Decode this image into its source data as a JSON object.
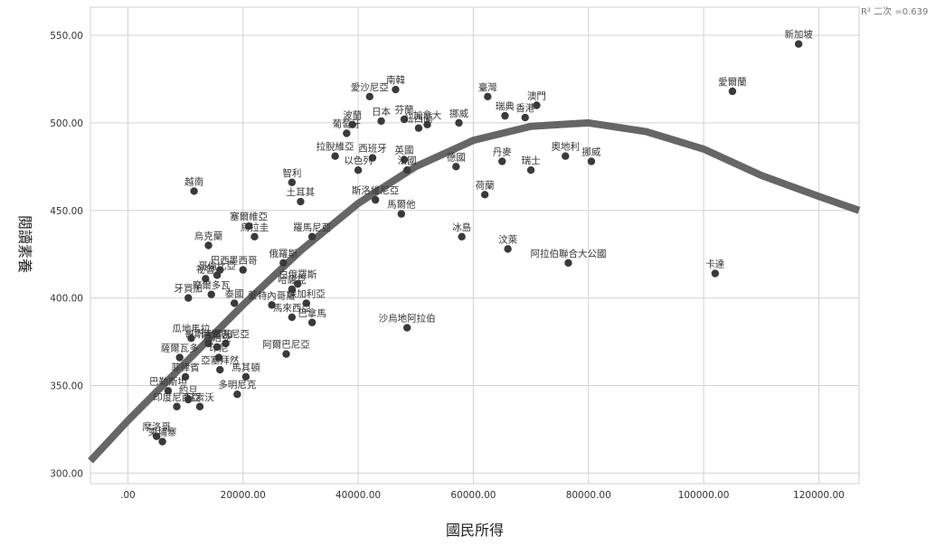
{
  "chart_data": {
    "type": "scatter",
    "xlabel": "國民所得",
    "ylabel": "閱讀素養",
    "xlim": [
      -6500,
      127000
    ],
    "ylim": [
      294,
      566
    ],
    "xticks": [
      0,
      20000,
      40000,
      60000,
      80000,
      100000,
      120000
    ],
    "xtick_labels": [
      ".00",
      "20000.00",
      "40000.00",
      "60000.00",
      "80000.00",
      "100000.00",
      "120000.00"
    ],
    "yticks": [
      300,
      350,
      400,
      450,
      500,
      550
    ],
    "ytick_labels": [
      "300.00",
      "350.00",
      "400.00",
      "450.00",
      "500.00",
      "550.00"
    ],
    "grid": true,
    "fit": {
      "type": "quadratic",
      "label": "R² 二次 =0.639",
      "color": "#666666",
      "curve": [
        [
          -6500,
          307
        ],
        [
          0,
          330
        ],
        [
          10000,
          363
        ],
        [
          20000,
          396
        ],
        [
          30000,
          427
        ],
        [
          40000,
          454
        ],
        [
          50000,
          475
        ],
        [
          60000,
          490
        ],
        [
          70000,
          498
        ],
        [
          80000,
          500
        ],
        [
          90000,
          495
        ],
        [
          100000,
          485
        ],
        [
          110000,
          470
        ],
        [
          120000,
          458
        ],
        [
          127000,
          450
        ]
      ]
    },
    "point_color": "#3a3a3a",
    "points": [
      {
        "label": "新加坡",
        "x": 116500,
        "y": 545
      },
      {
        "label": "愛爾蘭",
        "x": 105000,
        "y": 518
      },
      {
        "label": "卡達",
        "x": 102000,
        "y": 414
      },
      {
        "label": "南韓",
        "x": 46500,
        "y": 519
      },
      {
        "label": "愛沙尼亞",
        "x": 42000,
        "y": 515
      },
      {
        "label": "臺灣",
        "x": 62500,
        "y": 515
      },
      {
        "label": "澳門",
        "x": 71000,
        "y": 510
      },
      {
        "label": "香港",
        "x": 69000,
        "y": 503
      },
      {
        "label": "瑞典",
        "x": 65500,
        "y": 504
      },
      {
        "label": "挪威",
        "x": 57500,
        "y": 500
      },
      {
        "label": "加拿大",
        "x": 52000,
        "y": 499
      },
      {
        "label": "日本",
        "x": 44000,
        "y": 501
      },
      {
        "label": "波蘭",
        "x": 39000,
        "y": 499
      },
      {
        "label": "紐西蘭",
        "x": 50500,
        "y": 497
      },
      {
        "label": "芬蘭",
        "x": 48000,
        "y": 502
      },
      {
        "label": "葡萄牙",
        "x": 38000,
        "y": 494
      },
      {
        "label": "西班牙",
        "x": 42500,
        "y": 480
      },
      {
        "label": "拉脫維亞",
        "x": 36000,
        "y": 481
      },
      {
        "label": "英國",
        "x": 48000,
        "y": 479
      },
      {
        "label": "德國",
        "x": 57000,
        "y": 475
      },
      {
        "label": "丹麥",
        "x": 65000,
        "y": 478
      },
      {
        "label": "奧地利",
        "x": 76000,
        "y": 481
      },
      {
        "label": "挪威",
        "x": 80500,
        "y": 478
      },
      {
        "label": "瑞士",
        "x": 70000,
        "y": 473
      },
      {
        "label": "智利",
        "x": 28500,
        "y": 466
      },
      {
        "label": "以色列",
        "x": 40000,
        "y": 473
      },
      {
        "label": "法國",
        "x": 48500,
        "y": 473
      },
      {
        "label": "荷蘭",
        "x": 62000,
        "y": 459
      },
      {
        "label": "越南",
        "x": 11500,
        "y": 461
      },
      {
        "label": "土耳其",
        "x": 30000,
        "y": 455
      },
      {
        "label": "斯洛維尼亞",
        "x": 43000,
        "y": 456
      },
      {
        "label": "冰島",
        "x": 58000,
        "y": 435
      },
      {
        "label": "汶萊",
        "x": 66000,
        "y": 428
      },
      {
        "label": "阿拉伯聯合大公國",
        "x": 76500,
        "y": 420
      },
      {
        "label": "馬爾他",
        "x": 47500,
        "y": 448
      },
      {
        "label": "塞爾維亞",
        "x": 21000,
        "y": 441
      },
      {
        "label": "烏拉圭",
        "x": 22000,
        "y": 435
      },
      {
        "label": "羅馬尼亞",
        "x": 32000,
        "y": 435
      },
      {
        "label": "烏克蘭",
        "x": 14000,
        "y": 430
      },
      {
        "label": "哥倫比亞",
        "x": 15500,
        "y": 413
      },
      {
        "label": "巴西",
        "x": 16000,
        "y": 416
      },
      {
        "label": "墨西哥",
        "x": 20000,
        "y": 416
      },
      {
        "label": "俄羅斯",
        "x": 27000,
        "y": 420
      },
      {
        "label": "白俄羅斯",
        "x": 29500,
        "y": 408
      },
      {
        "label": "哈薩克",
        "x": 28500,
        "y": 405
      },
      {
        "label": "祕魯",
        "x": 13500,
        "y": 411
      },
      {
        "label": "牙買加",
        "x": 10500,
        "y": 400
      },
      {
        "label": "摩爾多瓦",
        "x": 14500,
        "y": 402
      },
      {
        "label": "泰國",
        "x": 18500,
        "y": 397
      },
      {
        "label": "蒙特內哥羅",
        "x": 25000,
        "y": 396
      },
      {
        "label": "保加利亞",
        "x": 31000,
        "y": 397
      },
      {
        "label": "沙烏地阿拉伯",
        "x": 48500,
        "y": 383
      },
      {
        "label": "馬來西亞",
        "x": 28500,
        "y": 389
      },
      {
        "label": "巴拿馬",
        "x": 32000,
        "y": 386
      },
      {
        "label": "瓜地馬拉",
        "x": 11000,
        "y": 377
      },
      {
        "label": "哥斯大黎加",
        "x": 14000,
        "y": 374
      },
      {
        "label": "阿爾巴尼亞",
        "x": 17000,
        "y": 374
      },
      {
        "label": "喬治亞",
        "x": 15500,
        "y": 372
      },
      {
        "label": "薩爾瓦多",
        "x": 9000,
        "y": 366
      },
      {
        "label": "印尼",
        "x": 15800,
        "y": 366
      },
      {
        "label": "阿爾巴尼亞",
        "x": 27500,
        "y": 368
      },
      {
        "label": "亞塞拜然",
        "x": 16000,
        "y": 359
      },
      {
        "label": "菲律賓",
        "x": 10000,
        "y": 355
      },
      {
        "label": "馬其頓",
        "x": 20500,
        "y": 355
      },
      {
        "label": "巴勒斯坦",
        "x": 7000,
        "y": 347
      },
      {
        "label": "約旦",
        "x": 10500,
        "y": 342
      },
      {
        "label": "多明尼克",
        "x": 19000,
        "y": 345
      },
      {
        "label": "印度尼西亞",
        "x": 8500,
        "y": 338
      },
      {
        "label": "科索沃",
        "x": 12500,
        "y": 338
      },
      {
        "label": "摩洛哥",
        "x": 5000,
        "y": 321
      },
      {
        "label": "柬埔寨",
        "x": 6000,
        "y": 318
      }
    ]
  }
}
